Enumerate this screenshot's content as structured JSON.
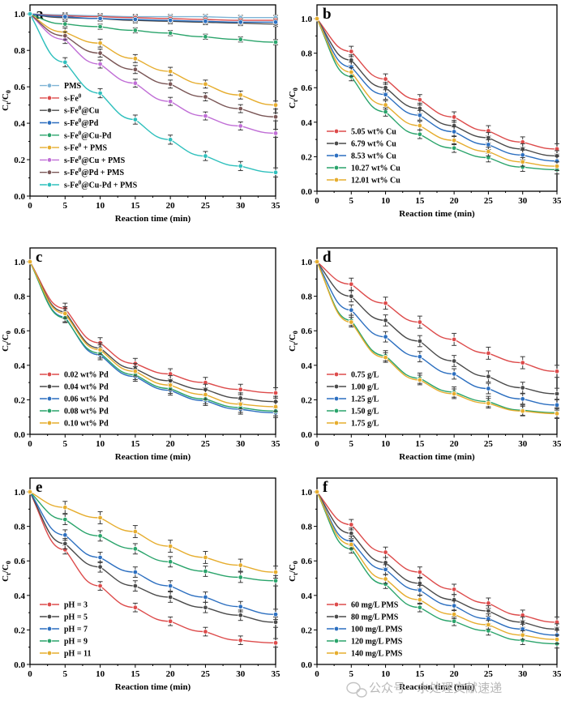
{
  "colors": {
    "red": "#dd4b4b",
    "darkgray": "#4a4a4a",
    "blue": "#2c6fc0",
    "green": "#2aa46b",
    "gold": "#e6ad2e",
    "lightblue": "#7fb4d6",
    "violet": "#c06ed6",
    "brown": "#7a5656",
    "cyan": "#2fc0bd"
  },
  "watermark": {
    "text": "公众号 · 水处理文献速递",
    "icon": "wechat-icon"
  },
  "chart_data": [
    {
      "panel": "a",
      "type": "line",
      "xlabel": "Reaction time (min)",
      "ylabel_main": "C",
      "ylabel_sub1": "t",
      "ylabel_sep": "/C",
      "ylabel_sub2": "0",
      "xlim": [
        0,
        35
      ],
      "ylim": [
        0,
        1.05
      ],
      "xticks": [
        "0",
        "5",
        "10",
        "15",
        "20",
        "25",
        "30",
        "35"
      ],
      "yticks": [
        "0.0",
        "0.2",
        "0.4",
        "0.6",
        "0.8",
        "1.0"
      ],
      "x": [
        0,
        5,
        10,
        15,
        20,
        25,
        30,
        35
      ],
      "legend_position": "bottom-left",
      "series": [
        {
          "name": "PMS",
          "label_base": "PMS",
          "color_key": "lightblue",
          "values": [
            1.0,
            0.995,
            0.99,
            0.985,
            0.985,
            0.985,
            0.98,
            0.98
          ],
          "error": 0.012
        },
        {
          "name": "s-Fe0",
          "label_base": "s-Fe",
          "label_sup": "0",
          "color_key": "red",
          "values": [
            1.0,
            0.99,
            0.985,
            0.98,
            0.975,
            0.97,
            0.965,
            0.965
          ],
          "error": 0.012
        },
        {
          "name": "s-Fe0@Cu",
          "label_base": "s-Fe",
          "label_sup": "0",
          "label_rest": "@Cu",
          "color_key": "darkgray",
          "values": [
            1.0,
            0.98,
            0.975,
            0.965,
            0.96,
            0.955,
            0.95,
            0.945
          ],
          "error": 0.014
        },
        {
          "name": "s-Fe0@Pd",
          "label_base": "s-Fe",
          "label_sup": "0",
          "label_rest": "@Pd",
          "color_key": "blue",
          "values": [
            1.0,
            0.985,
            0.975,
            0.97,
            0.965,
            0.96,
            0.955,
            0.955
          ],
          "error": 0.012
        },
        {
          "name": "s-Fe0@Cu-Pd",
          "label_base": "s-Fe",
          "label_sup": "0",
          "label_rest": "@Cu-Pd",
          "color_key": "green",
          "values": [
            1.0,
            0.945,
            0.93,
            0.91,
            0.895,
            0.875,
            0.86,
            0.845
          ],
          "error": 0.014
        },
        {
          "name": "s-Fe0 + PMS",
          "label_base": "s-Fe",
          "label_sup": "0",
          "label_rest": " + PMS",
          "color_key": "gold",
          "values": [
            1.0,
            0.9,
            0.84,
            0.755,
            0.685,
            0.615,
            0.555,
            0.5
          ],
          "error": 0.022
        },
        {
          "name": "s-Fe0@Cu + PMS",
          "label_base": "s-Fe",
          "label_sup": "0",
          "label_rest": "@Cu + PMS",
          "color_key": "violet",
          "values": [
            1.0,
            0.86,
            0.725,
            0.62,
            0.52,
            0.44,
            0.385,
            0.345
          ],
          "error": 0.022
        },
        {
          "name": "s-Fe0@Pd + PMS",
          "label_base": "s-Fe",
          "label_sup": "0",
          "label_rest": "@Pd + PMS",
          "color_key": "brown",
          "values": [
            1.0,
            0.88,
            0.785,
            0.695,
            0.615,
            0.545,
            0.48,
            0.435
          ],
          "error": 0.022
        },
        {
          "name": "s-Fe0@Cu-Pd + PMS",
          "label_base": "s-Fe",
          "label_sup": "0",
          "label_rest": "@Cu-Pd + PMS",
          "color_key": "cyan",
          "values": [
            1.0,
            0.735,
            0.565,
            0.42,
            0.31,
            0.22,
            0.165,
            0.13
          ],
          "error": 0.025
        }
      ]
    },
    {
      "panel": "b",
      "type": "line",
      "xlabel": "Reaction time (min)",
      "ylabel_main": "C",
      "ylabel_sub1": "t",
      "ylabel_sep": "/C",
      "ylabel_sub2": "0",
      "xlim": [
        0,
        35
      ],
      "ylim": [
        0,
        1.08
      ],
      "xticks": [
        "0",
        "5",
        "10",
        "15",
        "20",
        "25",
        "30",
        "35"
      ],
      "yticks": [
        "0.0",
        "0.2",
        "0.4",
        "0.6",
        "0.8",
        "1.0"
      ],
      "x": [
        0,
        5,
        10,
        15,
        20,
        25,
        30,
        35
      ],
      "legend_position": "bottom-left",
      "series": [
        {
          "name": "5.05 wt% Cu",
          "label_base": "5.05  wt% Cu",
          "color_key": "red",
          "values": [
            1.0,
            0.81,
            0.65,
            0.53,
            0.43,
            0.35,
            0.285,
            0.245
          ],
          "error": 0.03
        },
        {
          "name": "6.79 wt% Cu",
          "label_base": "6.79  wt% Cu",
          "color_key": "darkgray",
          "values": [
            1.0,
            0.76,
            0.6,
            0.48,
            0.38,
            0.31,
            0.245,
            0.205
          ],
          "error": 0.03
        },
        {
          "name": "8.53 wt% Cu",
          "label_base": "8.53  wt% Cu",
          "color_key": "blue",
          "values": [
            1.0,
            0.72,
            0.56,
            0.44,
            0.345,
            0.27,
            0.21,
            0.175
          ],
          "error": 0.028
        },
        {
          "name": "10.27 wt% Cu",
          "label_base": "10.27  wt% Cu",
          "color_key": "green",
          "values": [
            1.0,
            0.665,
            0.46,
            0.33,
            0.25,
            0.195,
            0.14,
            0.125
          ],
          "error": 0.025
        },
        {
          "name": "12.01 wt% Cu",
          "label_base": "12.01  wt% Cu",
          "color_key": "gold",
          "values": [
            1.0,
            0.69,
            0.5,
            0.38,
            0.295,
            0.23,
            0.17,
            0.145
          ],
          "error": 0.025
        }
      ]
    },
    {
      "panel": "c",
      "type": "line",
      "xlabel": "Reaction time (min)",
      "ylabel_main": "C",
      "ylabel_sub1": "t",
      "ylabel_sep": "/C",
      "ylabel_sub2": "0",
      "xlim": [
        0,
        35
      ],
      "ylim": [
        0,
        1.08
      ],
      "xticks": [
        "0",
        "5",
        "10",
        "15",
        "20",
        "25",
        "30",
        "35"
      ],
      "yticks": [
        "0.0",
        "0.2",
        "0.4",
        "0.6",
        "0.8",
        "1.0"
      ],
      "x": [
        0,
        5,
        10,
        15,
        20,
        25,
        30,
        35
      ],
      "legend_position": "bottom-left",
      "series": [
        {
          "name": "0.02 wt% Pd",
          "label_base": "0.02 wt% Pd",
          "color_key": "red",
          "values": [
            1.0,
            0.73,
            0.53,
            0.41,
            0.35,
            0.3,
            0.26,
            0.24
          ],
          "error": 0.03
        },
        {
          "name": "0.04 wt% Pd",
          "label_base": "0.04 wt% Pd",
          "color_key": "darkgray",
          "values": [
            1.0,
            0.71,
            0.5,
            0.38,
            0.31,
            0.26,
            0.21,
            0.19
          ],
          "error": 0.03
        },
        {
          "name": "0.06 wt% Pd",
          "label_base": "0.06 wt% Pd",
          "color_key": "blue",
          "values": [
            1.0,
            0.68,
            0.46,
            0.335,
            0.255,
            0.195,
            0.145,
            0.125
          ],
          "error": 0.028
        },
        {
          "name": "0.08 wt% Pd",
          "label_base": "0.08 wt% Pd",
          "color_key": "green",
          "values": [
            1.0,
            0.675,
            0.47,
            0.345,
            0.265,
            0.205,
            0.155,
            0.135
          ],
          "error": 0.028
        },
        {
          "name": "0.10 wt% Pd",
          "label_base": "0.10 wt% Pd",
          "color_key": "gold",
          "values": [
            1.0,
            0.7,
            0.49,
            0.365,
            0.285,
            0.23,
            0.175,
            0.16
          ],
          "error": 0.028
        }
      ]
    },
    {
      "panel": "d",
      "type": "line",
      "xlabel": "Reaction time (min)",
      "ylabel_main": "C",
      "ylabel_sub1": "t",
      "ylabel_sep": "/C",
      "ylabel_sub2": "0",
      "xlim": [
        0,
        35
      ],
      "ylim": [
        0,
        1.08
      ],
      "xticks": [
        "0",
        "5",
        "10",
        "15",
        "20",
        "25",
        "30",
        "35"
      ],
      "yticks": [
        "0.0",
        "0.2",
        "0.4",
        "0.6",
        "0.8",
        "1.0"
      ],
      "x": [
        0,
        5,
        10,
        15,
        20,
        25,
        30,
        35
      ],
      "legend_position": "bottom-left",
      "series": [
        {
          "name": "0.75 g/L",
          "label_base": "0.75 g/L",
          "color_key": "red",
          "values": [
            1.0,
            0.87,
            0.76,
            0.65,
            0.55,
            0.47,
            0.415,
            0.365
          ],
          "error": 0.035
        },
        {
          "name": "1.00 g/L",
          "label_base": "1.00 g/L",
          "color_key": "darkgray",
          "values": [
            1.0,
            0.8,
            0.66,
            0.54,
            0.425,
            0.335,
            0.27,
            0.235
          ],
          "error": 0.032
        },
        {
          "name": "1.25 g/L",
          "label_base": "1.25 g/L",
          "color_key": "blue",
          "values": [
            1.0,
            0.72,
            0.565,
            0.45,
            0.35,
            0.265,
            0.205,
            0.17
          ],
          "error": 0.03
        },
        {
          "name": "1.50 g/L",
          "label_base": "1.50 g/L",
          "color_key": "green",
          "values": [
            1.0,
            0.66,
            0.455,
            0.325,
            0.245,
            0.19,
            0.14,
            0.125
          ],
          "error": 0.03
        },
        {
          "name": "1.75 g/L",
          "label_base": "1.75 g/L",
          "color_key": "gold",
          "values": [
            1.0,
            0.65,
            0.445,
            0.315,
            0.235,
            0.18,
            0.135,
            0.12
          ],
          "error": 0.028
        }
      ]
    },
    {
      "panel": "e",
      "type": "line",
      "xlabel": "Reaction time (min)",
      "ylabel_main": "C",
      "ylabel_sub1": "t",
      "ylabel_sep": "/C",
      "ylabel_sub2": "0",
      "xlim": [
        0,
        35
      ],
      "ylim": [
        0,
        1.08
      ],
      "xticks": [
        "0",
        "5",
        "10",
        "15",
        "20",
        "25",
        "30",
        "35"
      ],
      "yticks": [
        "0.0",
        "0.2",
        "0.4",
        "0.6",
        "0.8",
        "1.0"
      ],
      "x": [
        0,
        5,
        10,
        15,
        20,
        25,
        30,
        35
      ],
      "legend_position": "bottom-left",
      "series": [
        {
          "name": "pH = 3",
          "label_base": "pH = 3",
          "color_key": "red",
          "values": [
            1.0,
            0.665,
            0.455,
            0.33,
            0.25,
            0.19,
            0.14,
            0.125
          ],
          "error": 0.025
        },
        {
          "name": "pH = 5",
          "label_base": "pH = 5",
          "color_key": "darkgray",
          "values": [
            1.0,
            0.7,
            0.565,
            0.455,
            0.39,
            0.33,
            0.285,
            0.245
          ],
          "error": 0.03
        },
        {
          "name": "pH = 7",
          "label_base": "pH = 7",
          "color_key": "blue",
          "values": [
            1.0,
            0.75,
            0.62,
            0.535,
            0.455,
            0.39,
            0.335,
            0.29
          ],
          "error": 0.03
        },
        {
          "name": "pH = 9",
          "label_base": "pH = 9",
          "color_key": "green",
          "values": [
            1.0,
            0.84,
            0.745,
            0.67,
            0.595,
            0.54,
            0.505,
            0.485
          ],
          "error": 0.03
        },
        {
          "name": "pH = 11",
          "label_base": "pH = 11",
          "color_key": "gold",
          "values": [
            1.0,
            0.91,
            0.85,
            0.77,
            0.685,
            0.62,
            0.575,
            0.535
          ],
          "error": 0.035
        }
      ]
    },
    {
      "panel": "f",
      "type": "line",
      "xlabel": "Reaction time (min)",
      "ylabel_main": "C",
      "ylabel_sub1": "t",
      "ylabel_sep": "/C",
      "ylabel_sub2": "0",
      "xlim": [
        0,
        35
      ],
      "ylim": [
        0,
        1.08
      ],
      "xticks": [
        "0",
        "5",
        "10",
        "15",
        "20",
        "25",
        "30",
        "35"
      ],
      "yticks": [
        "0.0",
        "0.2",
        "0.4",
        "0.6",
        "0.8",
        "1.0"
      ],
      "x": [
        0,
        5,
        10,
        15,
        20,
        25,
        30,
        35
      ],
      "legend_position": "bottom-left",
      "series": [
        {
          "name": "60 mg/L PMS",
          "label_base": "60  mg/L PMS",
          "color_key": "red",
          "values": [
            1.0,
            0.81,
            0.65,
            0.535,
            0.435,
            0.355,
            0.285,
            0.245
          ],
          "error": 0.03
        },
        {
          "name": "80 mg/L PMS",
          "label_base": "80  mg/L PMS",
          "color_key": "darkgray",
          "values": [
            1.0,
            0.76,
            0.59,
            0.47,
            0.375,
            0.31,
            0.245,
            0.205
          ],
          "error": 0.03
        },
        {
          "name": "100 mg/L PMS",
          "label_base": "100  mg/L PMS",
          "color_key": "blue",
          "values": [
            1.0,
            0.715,
            0.55,
            0.43,
            0.34,
            0.265,
            0.205,
            0.17
          ],
          "error": 0.028
        },
        {
          "name": "120 mg/L PMS",
          "label_base": "120  mg/L PMS",
          "color_key": "green",
          "values": [
            1.0,
            0.67,
            0.465,
            0.33,
            0.25,
            0.195,
            0.14,
            0.12
          ],
          "error": 0.025
        },
        {
          "name": "140 mg/L PMS",
          "label_base": "140  mg/L PMS",
          "color_key": "gold",
          "values": [
            1.0,
            0.695,
            0.495,
            0.375,
            0.29,
            0.23,
            0.17,
            0.145
          ],
          "error": 0.025
        }
      ]
    }
  ]
}
